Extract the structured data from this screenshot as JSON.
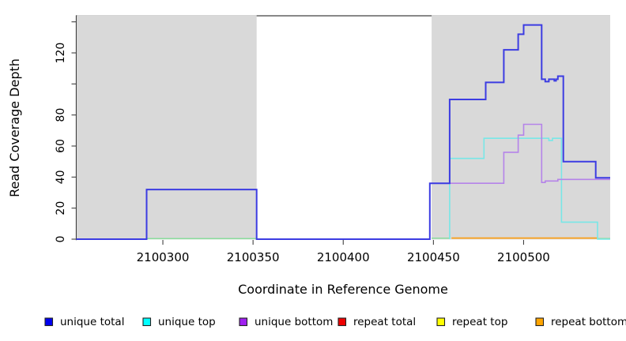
{
  "chart_data": {
    "type": "line",
    "subtype": "step-coverage-plot",
    "title": "",
    "xlabel": "Coordinate in Reference Genome",
    "ylabel": "Read Coverage Depth",
    "xlim": [
      2100252,
      2100548
    ],
    "ylim": [
      0,
      143.9
    ],
    "grid": false,
    "x_ticks": [
      {
        "value": 2100300,
        "label": "2100300"
      },
      {
        "value": 2100350,
        "label": "2100350"
      },
      {
        "value": 2100400,
        "label": "2100400"
      },
      {
        "value": 2100450,
        "label": "2100450"
      },
      {
        "value": 2100500,
        "label": "2100500"
      }
    ],
    "y_ticks": [
      {
        "value": 0,
        "label": "0"
      },
      {
        "value": 20,
        "label": "20"
      },
      {
        "value": 40,
        "label": "40"
      },
      {
        "value": 60,
        "label": "60"
      },
      {
        "value": 80,
        "label": "80"
      },
      {
        "value": 100,
        "label": ""
      },
      {
        "value": 120,
        "label": "120"
      },
      {
        "value": 140,
        "label": ""
      }
    ],
    "background_bands": [
      {
        "name": "repeat-region-left",
        "x0": 2100252,
        "x1": 2100352,
        "color": "#d9d9d9"
      },
      {
        "name": "repeat-region-right",
        "x0": 2100449,
        "x1": 2100548,
        "color": "#d9d9d9"
      }
    ],
    "series": [
      {
        "name": "baseline overlap",
        "color": "#8bdc9d",
        "width": 1.5,
        "segments": [
          [
            [
              2100291,
              0.4
            ],
            [
              2100352,
              0.4
            ]
          ],
          [
            [
              2100449,
              0.6
            ],
            [
              2100459,
              0.6
            ]
          ],
          [
            [
              2100541,
              0.4
            ],
            [
              2100548,
              0.4
            ]
          ]
        ]
      },
      {
        "name": "repeat bottom",
        "color": "#faa019",
        "width": 1.8,
        "segments": [
          [
            [
              2100460,
              0.7
            ],
            [
              2100541,
              0.7
            ]
          ]
        ]
      },
      {
        "name": "unique top",
        "color": "#78e7e7",
        "width": 1.6,
        "segments": [
          [
            [
              2100459,
              0
            ],
            [
              2100459,
              52
            ],
            [
              2100478,
              52
            ],
            [
              2100478,
              65
            ],
            [
              2100514,
              65
            ],
            [
              2100514,
              63.5
            ],
            [
              2100516,
              63.5
            ],
            [
              2100516,
              65
            ],
            [
              2100521,
              65
            ],
            [
              2100521,
              11
            ],
            [
              2100541,
              11
            ],
            [
              2100541,
              0
            ],
            [
              2100548,
              0
            ]
          ]
        ]
      },
      {
        "name": "unique bottom",
        "color": "#b583e9",
        "width": 1.6,
        "segments": [
          [
            [
              2100448,
              36
            ],
            [
              2100489,
              36
            ],
            [
              2100489,
              56
            ],
            [
              2100497,
              56
            ],
            [
              2100497,
              67
            ],
            [
              2100500,
              67
            ],
            [
              2100500,
              74
            ],
            [
              2100510,
              74
            ],
            [
              2100510,
              36.5
            ],
            [
              2100512,
              36.5
            ],
            [
              2100512,
              37.5
            ],
            [
              2100519,
              37.5
            ],
            [
              2100519,
              38.5
            ],
            [
              2100548,
              38.5
            ]
          ]
        ]
      },
      {
        "name": "unique total",
        "color": "#3c3ce2",
        "width": 2,
        "segments": [
          [
            [
              2100252,
              0
            ],
            [
              2100291,
              0
            ],
            [
              2100291,
              32
            ],
            [
              2100352,
              32
            ],
            [
              2100352,
              0
            ],
            [
              2100448,
              0
            ],
            [
              2100448,
              36
            ],
            [
              2100459,
              36
            ],
            [
              2100459,
              90
            ],
            [
              2100479,
              90
            ],
            [
              2100479,
              101
            ],
            [
              2100489,
              101
            ],
            [
              2100489,
              122
            ],
            [
              2100497,
              122
            ],
            [
              2100497,
              132
            ],
            [
              2100500,
              132
            ],
            [
              2100500,
              138
            ],
            [
              2100510,
              138
            ],
            [
              2100510,
              103
            ],
            [
              2100512,
              103
            ],
            [
              2100512,
              101.5
            ],
            [
              2100514,
              101.5
            ],
            [
              2100514,
              103
            ],
            [
              2100517,
              103
            ],
            [
              2100517,
              102
            ],
            [
              2100518,
              102
            ],
            [
              2100518,
              103
            ],
            [
              2100519,
              103
            ],
            [
              2100519,
              105
            ],
            [
              2100522,
              105
            ],
            [
              2100522,
              50
            ],
            [
              2100540,
              50
            ],
            [
              2100540,
              39.5
            ],
            [
              2100548,
              39.5
            ]
          ]
        ]
      }
    ],
    "legend": {
      "position": "bottom",
      "items": [
        {
          "label": "unique total",
          "color": "#0000f0"
        },
        {
          "label": "unique top",
          "color": "#00ffff"
        },
        {
          "label": "unique bottom",
          "color": "#a020f0"
        },
        {
          "label": "repeat total",
          "color": "#ee0000"
        },
        {
          "label": "repeat top",
          "color": "#ffff00"
        },
        {
          "label": "repeat bottom",
          "color": "#ffa500"
        }
      ]
    }
  }
}
